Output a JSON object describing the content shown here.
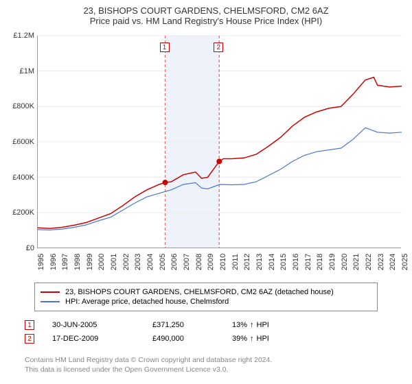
{
  "title": "23, BISHOPS COURT GARDENS, CHELMSFORD, CM2 6AZ",
  "subtitle": "Price paid vs. HM Land Registry's House Price Index (HPI)",
  "chart": {
    "type": "line",
    "background_color": "#ffffff",
    "grid_color": "#ececec",
    "axis_color": "#999999",
    "y_axis": {
      "min": 0,
      "max": 1200000,
      "tick_step": 200000,
      "ticks": [
        "£0",
        "£200K",
        "£400K",
        "£600K",
        "£800K",
        "£1M",
        "£1.2M"
      ],
      "label_fontsize": 11,
      "label_color": "#333333"
    },
    "x_axis": {
      "min": 1995,
      "max": 2025,
      "tick_step": 1,
      "ticks": [
        "1995",
        "1996",
        "1997",
        "1998",
        "1999",
        "2000",
        "2001",
        "2002",
        "2003",
        "2004",
        "2005",
        "2006",
        "2007",
        "2008",
        "2009",
        "2010",
        "2011",
        "2012",
        "2013",
        "2014",
        "2015",
        "2016",
        "2017",
        "2018",
        "2019",
        "2020",
        "2021",
        "2022",
        "2023",
        "2024",
        "2025"
      ],
      "label_fontsize": 11,
      "label_color": "#333333",
      "rotation": -90
    },
    "band": {
      "start_year": 2005.5,
      "end_year": 2009.96,
      "fill": "#eef2fb"
    },
    "vlines": [
      {
        "id": "1",
        "year": 2005.5,
        "color": "#e67e7e",
        "dash": "4,3"
      },
      {
        "id": "2",
        "year": 2009.96,
        "color": "#e67e7e",
        "dash": "4,3"
      }
    ],
    "marker_label_box": {
      "border_color": "#cc0000",
      "text_color": "#cc0000",
      "bg": "#ffffff"
    },
    "series": [
      {
        "name": "23, BISHOPS COURT GARDENS, CHELMSFORD, CM2 6AZ (detached house)",
        "color": "#cc0000",
        "line_width": 1.5,
        "points": [
          [
            1995,
            115000
          ],
          [
            1996,
            112000
          ],
          [
            1997,
            118000
          ],
          [
            1998,
            130000
          ],
          [
            1999,
            145000
          ],
          [
            2000,
            170000
          ],
          [
            2001,
            195000
          ],
          [
            2002,
            240000
          ],
          [
            2003,
            290000
          ],
          [
            2004,
            330000
          ],
          [
            2005,
            360000
          ],
          [
            2005.5,
            371250
          ],
          [
            2006,
            375000
          ],
          [
            2007,
            415000
          ],
          [
            2008,
            430000
          ],
          [
            2008.5,
            395000
          ],
          [
            2009,
            400000
          ],
          [
            2009.96,
            490000
          ],
          [
            2010.3,
            505000
          ],
          [
            2011,
            505000
          ],
          [
            2012,
            510000
          ],
          [
            2013,
            530000
          ],
          [
            2014,
            575000
          ],
          [
            2015,
            625000
          ],
          [
            2016,
            690000
          ],
          [
            2017,
            740000
          ],
          [
            2018,
            770000
          ],
          [
            2019,
            790000
          ],
          [
            2020,
            800000
          ],
          [
            2021,
            870000
          ],
          [
            2022,
            950000
          ],
          [
            2022.7,
            965000
          ],
          [
            2023,
            920000
          ],
          [
            2024,
            910000
          ],
          [
            2025,
            915000
          ]
        ]
      },
      {
        "name": "HPI: Average price, detached house, Chelmsford",
        "color": "#4a76c7",
        "line_width": 1.2,
        "points": [
          [
            1995,
            105000
          ],
          [
            1996,
            103000
          ],
          [
            1997,
            108000
          ],
          [
            1998,
            118000
          ],
          [
            1999,
            132000
          ],
          [
            2000,
            155000
          ],
          [
            2001,
            175000
          ],
          [
            2002,
            215000
          ],
          [
            2003,
            255000
          ],
          [
            2004,
            290000
          ],
          [
            2005,
            310000
          ],
          [
            2006,
            330000
          ],
          [
            2007,
            360000
          ],
          [
            2008,
            370000
          ],
          [
            2008.5,
            340000
          ],
          [
            2009,
            335000
          ],
          [
            2010,
            360000
          ],
          [
            2011,
            358000
          ],
          [
            2012,
            360000
          ],
          [
            2013,
            375000
          ],
          [
            2014,
            410000
          ],
          [
            2015,
            445000
          ],
          [
            2016,
            490000
          ],
          [
            2017,
            525000
          ],
          [
            2018,
            545000
          ],
          [
            2019,
            555000
          ],
          [
            2020,
            565000
          ],
          [
            2021,
            615000
          ],
          [
            2022,
            680000
          ],
          [
            2023,
            655000
          ],
          [
            2024,
            650000
          ],
          [
            2025,
            655000
          ]
        ]
      }
    ],
    "markers": [
      {
        "id": "1",
        "year": 2005.5,
        "value": 371250,
        "dot_color": "#cc0000"
      },
      {
        "id": "2",
        "year": 2009.96,
        "value": 490000,
        "dot_color": "#cc0000"
      }
    ]
  },
  "legend": {
    "border_color": "#888888",
    "items": [
      {
        "color": "#cc0000",
        "label": "23, BISHOPS COURT GARDENS, CHELMSFORD, CM2 6AZ (detached house)"
      },
      {
        "color": "#4a76c7",
        "label": "HPI: Average price, detached house, Chelmsford"
      }
    ]
  },
  "events": [
    {
      "id": "1",
      "date": "30-JUN-2005",
      "price": "£371,250",
      "pct": "13%",
      "arrow": "↑",
      "suffix": "HPI"
    },
    {
      "id": "2",
      "date": "17-DEC-2009",
      "price": "£490,000",
      "pct": "39%",
      "arrow": "↑",
      "suffix": "HPI"
    }
  ],
  "footer": {
    "line1": "Contains HM Land Registry data © Crown copyright and database right 2024.",
    "line2": "This data is licensed under the Open Government Licence v3.0."
  }
}
